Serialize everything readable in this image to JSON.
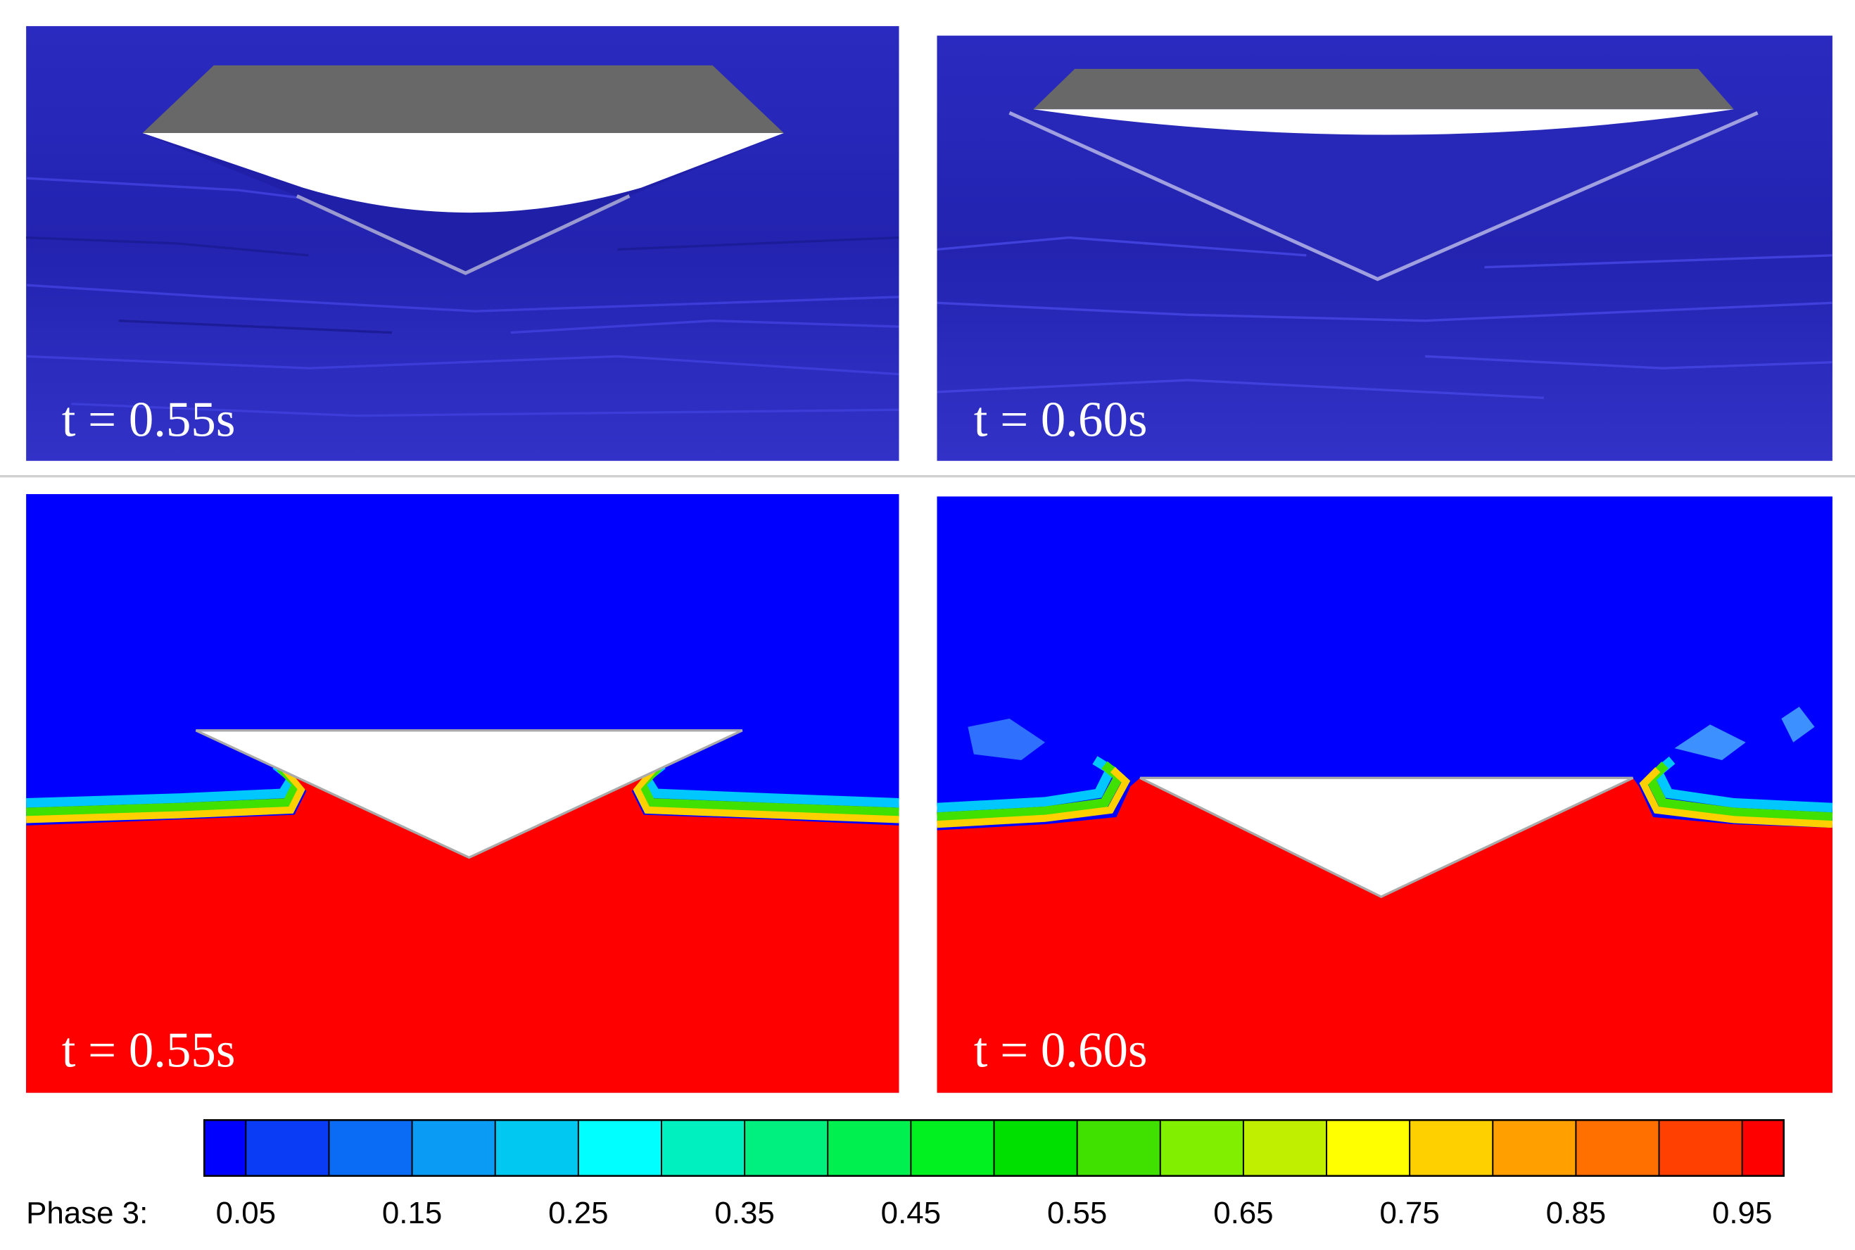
{
  "panels": [
    {
      "label": "t = 0.55s"
    },
    {
      "label": "t = 0.60s"
    },
    {
      "label": "t = 0.55s"
    },
    {
      "label": "t = 0.60s"
    }
  ],
  "colorbar": {
    "label": "Phase 3:",
    "range": [
      0.025,
      0.975
    ],
    "levels": [
      0.05,
      0.1,
      0.15,
      0.2,
      0.25,
      0.3,
      0.35,
      0.4,
      0.45,
      0.5,
      0.55,
      0.6,
      0.65,
      0.7,
      0.75,
      0.8,
      0.85,
      0.9,
      0.95
    ],
    "colors": [
      "#0000ff",
      "#0a3cf5",
      "#0a6cf5",
      "#0a9cf5",
      "#00c8f0",
      "#00ffff",
      "#00f0c0",
      "#00f080",
      "#00f050",
      "#00f020",
      "#00e000",
      "#40e000",
      "#80f000",
      "#c0f000",
      "#ffff00",
      "#ffd000",
      "#ffa000",
      "#ff7000",
      "#ff4000",
      "#ff0000"
    ],
    "ticks": [
      0.05,
      0.15,
      0.25,
      0.35,
      0.45,
      0.55,
      0.65,
      0.75,
      0.85,
      0.95
    ]
  }
}
